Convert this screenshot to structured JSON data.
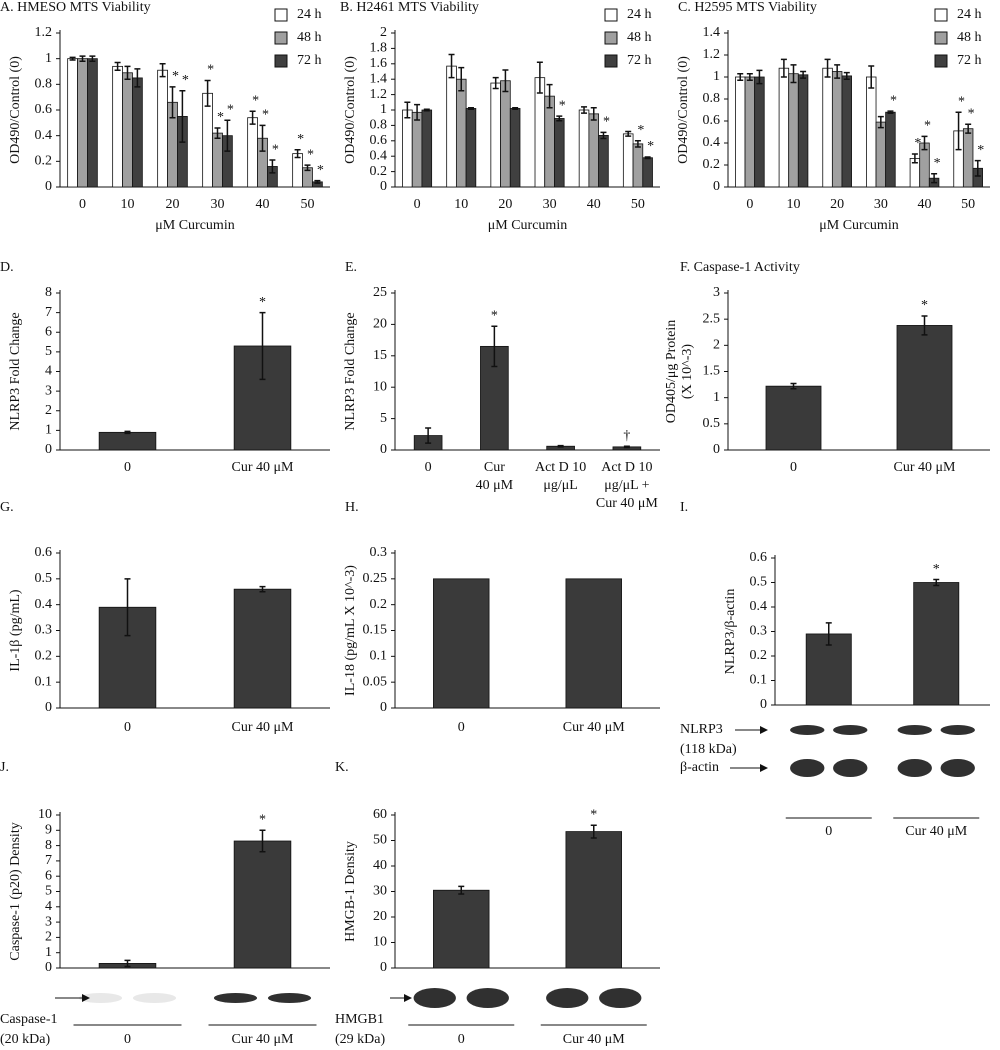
{
  "chart_data": [
    {
      "type": "bar",
      "title": "A. HMESO MTS Viability",
      "ylabel": [
        "OD490/Control (0)"
      ],
      "xlabel": "μM Curcumin",
      "categories": [
        "0",
        "10",
        "20",
        "30",
        "40",
        "50"
      ],
      "ylim": [
        0,
        1.2
      ],
      "yticks": [
        0,
        0.2,
        0.4,
        0.6,
        0.8,
        1,
        1.2
      ],
      "legend": "top-right",
      "series": [
        {
          "name": "24 h",
          "color": "#ffffff",
          "values": [
            1.0,
            0.94,
            0.91,
            0.73,
            0.54,
            0.26
          ],
          "errors": [
            0.01,
            0.03,
            0.05,
            0.1,
            0.05,
            0.03
          ],
          "annotations": [
            null,
            null,
            null,
            "*",
            "*",
            "*"
          ]
        },
        {
          "name": "48 h",
          "color": "#a0a0a0",
          "values": [
            1.0,
            0.89,
            0.66,
            0.42,
            0.38,
            0.15
          ],
          "errors": [
            0.02,
            0.05,
            0.12,
            0.04,
            0.1,
            0.02
          ],
          "annotations": [
            null,
            null,
            "*",
            "*",
            "*",
            "*"
          ]
        },
        {
          "name": "72 h",
          "color": "#404040",
          "values": [
            1.0,
            0.85,
            0.55,
            0.4,
            0.16,
            0.04
          ],
          "errors": [
            0.02,
            0.07,
            0.2,
            0.12,
            0.05,
            0.01
          ],
          "annotations": [
            null,
            null,
            "*",
            "*",
            "*",
            "*"
          ]
        }
      ]
    },
    {
      "type": "bar",
      "title": "B. H2461 MTS Viability",
      "ylabel": [
        "OD490/Control (0)"
      ],
      "xlabel": "μM Curcumin",
      "categories": [
        "0",
        "10",
        "20",
        "30",
        "40",
        "50"
      ],
      "ylim": [
        0,
        2
      ],
      "yticks": [
        0,
        0.2,
        0.4,
        0.6,
        0.8,
        1,
        1.2,
        1.4,
        1.6,
        1.8,
        2
      ],
      "legend": "top-right",
      "series": [
        {
          "name": "24 h",
          "color": "#ffffff",
          "values": [
            1.0,
            1.57,
            1.35,
            1.42,
            1.0,
            0.69
          ],
          "errors": [
            0.1,
            0.15,
            0.07,
            0.2,
            0.04,
            0.03
          ],
          "annotations": [
            null,
            null,
            null,
            null,
            null,
            null
          ]
        },
        {
          "name": "48 h",
          "color": "#a0a0a0",
          "values": [
            0.97,
            1.4,
            1.38,
            1.18,
            0.95,
            0.56
          ],
          "errors": [
            0.1,
            0.15,
            0.14,
            0.15,
            0.08,
            0.04
          ],
          "annotations": [
            null,
            null,
            null,
            null,
            null,
            "*"
          ]
        },
        {
          "name": "72 h",
          "color": "#404040",
          "values": [
            1.0,
            1.02,
            1.02,
            0.89,
            0.67,
            0.38
          ],
          "errors": [
            0.01,
            0.01,
            0.01,
            0.03,
            0.04,
            0.01
          ],
          "annotations": [
            null,
            null,
            null,
            "*",
            "*",
            "*"
          ]
        }
      ]
    },
    {
      "type": "bar",
      "title": "C. H2595 MTS Viability",
      "ylabel": [
        "OD490/Control (0)"
      ],
      "xlabel": "μM Curcumin",
      "categories": [
        "0",
        "10",
        "20",
        "30",
        "40",
        "50"
      ],
      "ylim": [
        0,
        1.4
      ],
      "yticks": [
        0,
        0.2,
        0.4,
        0.6,
        0.8,
        1,
        1.2,
        1.4
      ],
      "legend": "top-right",
      "series": [
        {
          "name": "24 h",
          "color": "#ffffff",
          "values": [
            1.0,
            1.08,
            1.08,
            1.0,
            0.26,
            0.51
          ],
          "errors": [
            0.03,
            0.08,
            0.08,
            0.1,
            0.04,
            0.17
          ],
          "annotations": [
            null,
            null,
            null,
            null,
            "*",
            "*"
          ]
        },
        {
          "name": "48 h",
          "color": "#a0a0a0",
          "values": [
            1.0,
            1.03,
            1.05,
            0.59,
            0.4,
            0.53
          ],
          "errors": [
            0.03,
            0.08,
            0.06,
            0.05,
            0.06,
            0.04
          ],
          "annotations": [
            null,
            null,
            null,
            null,
            "*",
            "*"
          ]
        },
        {
          "name": "72 h",
          "color": "#404040",
          "values": [
            1.0,
            1.02,
            1.01,
            0.68,
            0.08,
            0.17
          ],
          "errors": [
            0.06,
            0.03,
            0.03,
            0.01,
            0.04,
            0.07
          ],
          "annotations": [
            null,
            null,
            null,
            "*",
            "*",
            "*"
          ]
        }
      ]
    },
    {
      "type": "bar",
      "title": "D.",
      "ylabel": [
        "NLRP3 Fold Change"
      ],
      "categories": [
        "0",
        "Cur 40 μM"
      ],
      "ylim": [
        0,
        8
      ],
      "yticks": [
        0,
        1,
        2,
        3,
        4,
        5,
        6,
        7,
        8
      ],
      "series": [
        {
          "color": "#3a3a3a",
          "values": [
            0.9,
            5.3
          ],
          "errors": [
            0.05,
            1.7
          ],
          "annotations": [
            null,
            "*"
          ]
        }
      ]
    },
    {
      "type": "bar",
      "title": "E.",
      "ylabel": [
        "NLRP3 Fold Change"
      ],
      "categories": [
        "0",
        [
          "Cur",
          "40 μM"
        ],
        [
          "Act D 10",
          "μg/μL"
        ],
        [
          "Act D 10",
          "μg/μL +",
          "Cur 40 μM"
        ]
      ],
      "ylim": [
        0,
        25
      ],
      "yticks": [
        0,
        5,
        10,
        15,
        20,
        25
      ],
      "series": [
        {
          "color": "#3a3a3a",
          "values": [
            2.3,
            16.5,
            0.6,
            0.5
          ],
          "errors": [
            1.2,
            3.2,
            0.1,
            0.1
          ],
          "annotations": [
            null,
            "*",
            null,
            "†"
          ]
        }
      ]
    },
    {
      "type": "bar",
      "title": "F. Caspase-1 Activity",
      "ylabel": [
        "OD405/μg Protein",
        "(X 10^-3)"
      ],
      "categories": [
        "0",
        "Cur 40 μM"
      ],
      "ylim": [
        0,
        3
      ],
      "yticks": [
        0,
        0.5,
        1,
        1.5,
        2,
        2.5,
        3
      ],
      "series": [
        {
          "color": "#3a3a3a",
          "values": [
            1.22,
            2.38
          ],
          "errors": [
            0.05,
            0.18
          ],
          "annotations": [
            null,
            "*"
          ]
        }
      ]
    },
    {
      "type": "bar",
      "title": "G.",
      "ylabel": [
        "IL-1β (pg/mL)"
      ],
      "categories": [
        "0",
        "Cur 40 μM"
      ],
      "ylim": [
        0,
        0.6
      ],
      "yticks": [
        0,
        0.1,
        0.2,
        0.3,
        0.4,
        0.5,
        0.6
      ],
      "series": [
        {
          "color": "#3a3a3a",
          "values": [
            0.39,
            0.46
          ],
          "errors": [
            0.11,
            0.01
          ],
          "annotations": [
            null,
            null
          ]
        }
      ]
    },
    {
      "type": "bar",
      "title": "H.",
      "ylabel": [
        "IL-18 (pg/mL X 10^-3)"
      ],
      "categories": [
        "0",
        "Cur 40 μM"
      ],
      "ylim": [
        0,
        0.3
      ],
      "yticks": [
        0,
        0.05,
        0.1,
        0.15,
        0.2,
        0.25,
        0.3
      ],
      "series": [
        {
          "color": "#3a3a3a",
          "values": [
            0.25,
            0.25
          ],
          "annotations": [
            null,
            null
          ]
        }
      ]
    },
    {
      "type": "bar",
      "title": "I.",
      "ylabel": [
        "NLRP3/β-actin"
      ],
      "categories": [
        "0",
        "Cur 40 μM"
      ],
      "ylim": [
        0,
        0.6
      ],
      "yticks": [
        0,
        0.1,
        0.2,
        0.3,
        0.4,
        0.5,
        0.6
      ],
      "blot_labels": [
        [
          "NLRP3",
          "(118 kDa)"
        ],
        [
          "β-actin"
        ]
      ],
      "series": [
        {
          "color": "#3a3a3a",
          "values": [
            0.29,
            0.5
          ],
          "errors": [
            0.045,
            0.012
          ],
          "annotations": [
            null,
            "*"
          ]
        }
      ]
    },
    {
      "type": "bar",
      "title": "J.",
      "ylabel": [
        "Caspase-1 (p20) Density"
      ],
      "categories": [
        "0",
        "Cur 40 μM"
      ],
      "ylim": [
        0,
        10
      ],
      "yticks": [
        0,
        1,
        2,
        3,
        4,
        5,
        6,
        7,
        8,
        9,
        10
      ],
      "blot_labels": [
        [
          "Caspase-1",
          "(20 kDa)"
        ]
      ],
      "series": [
        {
          "color": "#3a3a3a",
          "values": [
            0.3,
            8.3
          ],
          "errors": [
            0.2,
            0.7
          ],
          "annotations": [
            null,
            "*"
          ]
        }
      ]
    },
    {
      "type": "bar",
      "title": "K.",
      "ylabel": [
        "HMGB-1 Density"
      ],
      "categories": [
        "0",
        "Cur 40 μM"
      ],
      "ylim": [
        0,
        60
      ],
      "yticks": [
        0,
        10,
        20,
        30,
        40,
        50,
        60
      ],
      "blot_labels": [
        [
          "HMGB1",
          "(29 kDa)"
        ]
      ],
      "series": [
        {
          "color": "#3a3a3a",
          "values": [
            30.5,
            53.5
          ],
          "errors": [
            1.5,
            2.5
          ],
          "annotations": [
            null,
            "*"
          ]
        }
      ]
    }
  ]
}
